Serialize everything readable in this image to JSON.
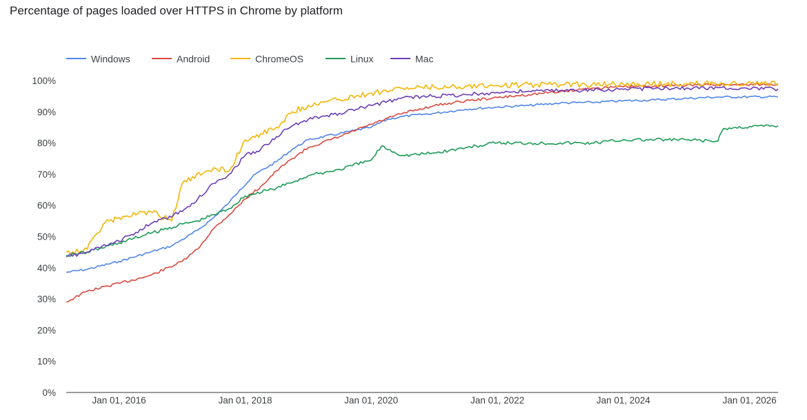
{
  "chart_data": {
    "type": "line",
    "title": "Percentage of pages loaded over HTTPS in Chrome by platform",
    "xlabel": "",
    "ylabel": "",
    "x_range": [
      "2015-03-01",
      "2026-06-15"
    ],
    "x_ticks": [
      "Jan 01, 2016",
      "Jan 01, 2018",
      "Jan 01, 2020",
      "Jan 01, 2022",
      "Jan 01, 2024",
      "Jan 01, 2026"
    ],
    "ylim": [
      0,
      100
    ],
    "y_ticks": [
      "0%",
      "10%",
      "20%",
      "30%",
      "40%",
      "50%",
      "60%",
      "70%",
      "80%",
      "90%",
      "100%"
    ],
    "grid": false,
    "legend_position": "top-left",
    "series": [
      {
        "name": "Windows",
        "color": "#4e84e9",
        "points": [
          [
            "2015-03-01",
            38.5
          ],
          [
            "2015-07-01",
            39.5
          ],
          [
            "2016-01-01",
            42
          ],
          [
            "2016-07-01",
            45
          ],
          [
            "2016-11-01",
            47
          ],
          [
            "2017-01-01",
            49
          ],
          [
            "2017-04-01",
            52
          ],
          [
            "2017-07-01",
            56
          ],
          [
            "2017-10-01",
            61
          ],
          [
            "2017-12-01",
            65
          ],
          [
            "2018-03-01",
            70
          ],
          [
            "2018-07-01",
            74
          ],
          [
            "2018-10-01",
            78
          ],
          [
            "2019-01-01",
            81
          ],
          [
            "2019-07-01",
            83
          ],
          [
            "2020-01-01",
            85
          ],
          [
            "2020-04-01",
            87.5
          ],
          [
            "2020-07-01",
            88.5
          ],
          [
            "2021-01-01",
            89.5
          ],
          [
            "2021-07-01",
            90.8
          ],
          [
            "2022-01-01",
            91.5
          ],
          [
            "2022-07-01",
            92
          ],
          [
            "2023-01-01",
            92.8
          ],
          [
            "2023-07-01",
            93
          ],
          [
            "2024-01-01",
            93.5
          ],
          [
            "2024-07-01",
            93.8
          ],
          [
            "2025-01-01",
            94.3
          ],
          [
            "2025-07-01",
            94.7
          ],
          [
            "2026-06-15",
            94.8
          ]
        ]
      },
      {
        "name": "Android",
        "color": "#d9473d",
        "points": [
          [
            "2015-03-01",
            29
          ],
          [
            "2015-07-01",
            32.5
          ],
          [
            "2016-01-01",
            35
          ],
          [
            "2016-07-01",
            37.5
          ],
          [
            "2017-01-01",
            42
          ],
          [
            "2017-04-01",
            46
          ],
          [
            "2017-07-01",
            52.5
          ],
          [
            "2017-10-01",
            57
          ],
          [
            "2018-01-01",
            62
          ],
          [
            "2018-04-01",
            66
          ],
          [
            "2018-07-01",
            71
          ],
          [
            "2018-10-01",
            75
          ],
          [
            "2019-01-01",
            78.5
          ],
          [
            "2019-07-01",
            82
          ],
          [
            "2020-01-01",
            86
          ],
          [
            "2020-07-01",
            89.5
          ],
          [
            "2021-01-01",
            92
          ],
          [
            "2021-07-01",
            93.5
          ],
          [
            "2022-01-01",
            94.5
          ],
          [
            "2022-07-01",
            95.5
          ],
          [
            "2023-01-01",
            96.5
          ],
          [
            "2023-07-01",
            97.5
          ],
          [
            "2024-01-01",
            98
          ],
          [
            "2024-07-01",
            98.3
          ],
          [
            "2025-01-01",
            98.5
          ],
          [
            "2025-07-01",
            98.7
          ],
          [
            "2026-06-15",
            98.8
          ]
        ]
      },
      {
        "name": "ChromeOS",
        "color": "#f4b400",
        "points": [
          [
            "2015-03-01",
            45
          ],
          [
            "2015-07-01",
            46
          ],
          [
            "2015-10-01",
            54
          ],
          [
            "2016-01-01",
            56
          ],
          [
            "2016-07-01",
            58
          ],
          [
            "2016-11-01",
            55
          ],
          [
            "2017-01-01",
            67
          ],
          [
            "2017-07-01",
            72
          ],
          [
            "2017-10-01",
            71
          ],
          [
            "2018-01-01",
            81
          ],
          [
            "2018-04-01",
            83
          ],
          [
            "2018-07-01",
            85
          ],
          [
            "2018-10-01",
            90
          ],
          [
            "2019-01-01",
            92
          ],
          [
            "2019-07-01",
            94
          ],
          [
            "2020-01-01",
            96
          ],
          [
            "2020-07-01",
            97.5
          ],
          [
            "2021-01-01",
            97.8
          ],
          [
            "2021-07-01",
            98.3
          ],
          [
            "2022-01-01",
            98.5
          ],
          [
            "2023-01-01",
            98.7
          ],
          [
            "2024-01-01",
            98.8
          ],
          [
            "2025-01-01",
            99
          ],
          [
            "2026-06-15",
            99
          ]
        ]
      },
      {
        "name": "Linux",
        "color": "#1a9a55",
        "points": [
          [
            "2015-03-01",
            44
          ],
          [
            "2015-07-01",
            45
          ],
          [
            "2016-01-01",
            48
          ],
          [
            "2016-07-01",
            51
          ],
          [
            "2017-01-01",
            54
          ],
          [
            "2017-04-01",
            55
          ],
          [
            "2017-07-01",
            57
          ],
          [
            "2017-10-01",
            59
          ],
          [
            "2018-01-01",
            63
          ],
          [
            "2018-07-01",
            65.5
          ],
          [
            "2019-01-01",
            69.5
          ],
          [
            "2019-07-01",
            71.5
          ],
          [
            "2020-01-01",
            74.5
          ],
          [
            "2020-03-01",
            79
          ],
          [
            "2020-07-01",
            76
          ],
          [
            "2021-01-01",
            76.8
          ],
          [
            "2021-07-01",
            78.5
          ],
          [
            "2022-01-01",
            80
          ],
          [
            "2022-07-01",
            80
          ],
          [
            "2023-01-01",
            80
          ],
          [
            "2023-07-01",
            80
          ],
          [
            "2024-01-01",
            81
          ],
          [
            "2024-07-01",
            81
          ],
          [
            "2025-01-01",
            81
          ],
          [
            "2025-07-01",
            80.5
          ],
          [
            "2025-08-01",
            84.5
          ],
          [
            "2026-01-01",
            85.3
          ],
          [
            "2026-06-15",
            85.5
          ]
        ]
      },
      {
        "name": "Mac",
        "color": "#6a3bb5",
        "points": [
          [
            "2015-03-01",
            43.5
          ],
          [
            "2015-07-01",
            45
          ],
          [
            "2016-01-01",
            48.5
          ],
          [
            "2016-07-01",
            54
          ],
          [
            "2017-01-01",
            58
          ],
          [
            "2017-04-01",
            62
          ],
          [
            "2017-07-01",
            67
          ],
          [
            "2017-10-01",
            70
          ],
          [
            "2018-01-01",
            76
          ],
          [
            "2018-04-01",
            78
          ],
          [
            "2018-07-01",
            82
          ],
          [
            "2018-10-01",
            85.5
          ],
          [
            "2019-01-01",
            87.5
          ],
          [
            "2019-07-01",
            89.5
          ],
          [
            "2020-01-01",
            92
          ],
          [
            "2020-07-01",
            94.5
          ],
          [
            "2021-01-01",
            95
          ],
          [
            "2021-07-01",
            95.5
          ],
          [
            "2022-01-01",
            96.2
          ],
          [
            "2022-07-01",
            96.6
          ],
          [
            "2023-01-01",
            96.8
          ],
          [
            "2023-07-01",
            97
          ],
          [
            "2024-01-01",
            97.2
          ],
          [
            "2024-07-01",
            97.5
          ],
          [
            "2025-01-01",
            97.6
          ],
          [
            "2025-07-01",
            97.7
          ],
          [
            "2026-06-15",
            97.3
          ]
        ]
      }
    ]
  }
}
